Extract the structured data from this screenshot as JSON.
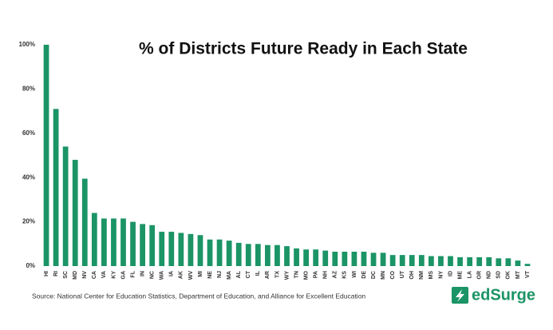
{
  "chart_data": {
    "type": "bar",
    "title": "% of Districts Future Ready in Each State",
    "source": "Source: National Center for Education Statistics, Department of Education, and Alliance for Excellent Education",
    "logo": "edSurge",
    "color": "#1b9466",
    "grid": false,
    "categories": [
      "HI",
      "RI",
      "SC",
      "MD",
      "NV",
      "CA",
      "VA",
      "KY",
      "GA",
      "FL",
      "IN",
      "NC",
      "WA",
      "IA",
      "AK",
      "WV",
      "MI",
      "NE",
      "NJ",
      "MA",
      "AL",
      "CT",
      "IL",
      "AR",
      "TX",
      "WY",
      "TN",
      "MO",
      "PA",
      "NH",
      "AZ",
      "KS",
      "WI",
      "DE",
      "DC",
      "MN",
      "CO",
      "UT",
      "OH",
      "NM",
      "MS",
      "NY",
      "ID",
      "ME",
      "LA",
      "OR",
      "ND",
      "SD",
      "OK",
      "MT",
      "VT"
    ],
    "values": [
      100,
      71,
      54,
      48,
      39.5,
      24,
      21.5,
      21.5,
      21.5,
      20,
      19,
      18.5,
      15.5,
      15.5,
      15,
      14.5,
      14,
      12,
      12,
      11.5,
      10.5,
      10,
      10,
      9.5,
      9.5,
      9,
      8,
      7.5,
      7.5,
      7,
      6.5,
      6.5,
      6.5,
      6.5,
      6,
      6,
      5,
      5,
      5,
      5,
      4.5,
      4.5,
      4.5,
      4,
      4,
      4,
      4,
      3.5,
      3.5,
      2.5,
      1
    ],
    "ylim": [
      0,
      100
    ],
    "yticks": [
      {
        "value": 0,
        "label": "0%"
      },
      {
        "value": 20,
        "label": "20%"
      },
      {
        "value": 40,
        "label": "40%"
      },
      {
        "value": 60,
        "label": "60%"
      },
      {
        "value": 80,
        "label": "80%"
      },
      {
        "value": 100,
        "label": "100%"
      }
    ]
  }
}
